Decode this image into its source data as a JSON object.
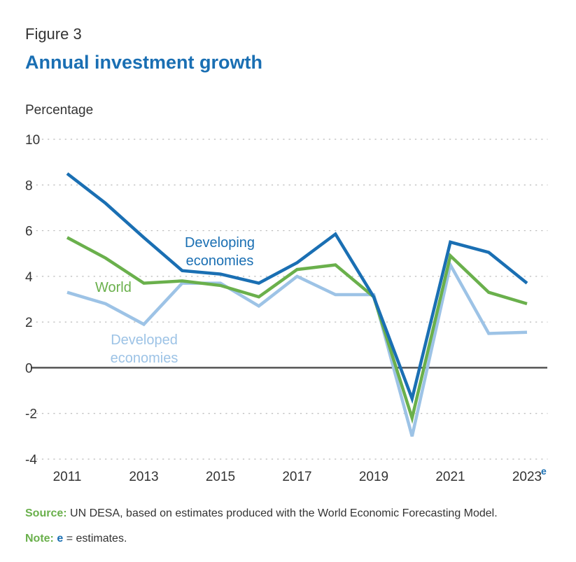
{
  "header": {
    "figure_label": "Figure 3",
    "title": "Annual investment growth"
  },
  "chart_data": {
    "type": "line",
    "ylabel": "Percentage",
    "ylim": [
      -4,
      10
    ],
    "yticks": [
      10,
      8,
      6,
      4,
      2,
      0,
      -2,
      -4
    ],
    "x": [
      2011,
      2012,
      2013,
      2014,
      2015,
      2016,
      2017,
      2018,
      2019,
      2020,
      2021,
      2022,
      2023
    ],
    "xtick_labels": [
      {
        "year": 2011,
        "label": "2011",
        "suffix": ""
      },
      {
        "year": 2013,
        "label": "2013",
        "suffix": ""
      },
      {
        "year": 2015,
        "label": "2015",
        "suffix": ""
      },
      {
        "year": 2017,
        "label": "2017",
        "suffix": ""
      },
      {
        "year": 2019,
        "label": "2019",
        "suffix": ""
      },
      {
        "year": 2021,
        "label": "2021",
        "suffix": ""
      },
      {
        "year": 2023,
        "label": "2023",
        "suffix": "e"
      }
    ],
    "grid": true,
    "series": [
      {
        "name": "Developed economies",
        "label_lines": [
          "Developed",
          "economies"
        ],
        "color": "#9dc3e6",
        "values": [
          3.3,
          2.8,
          1.9,
          3.7,
          3.7,
          2.7,
          4.0,
          3.2,
          3.2,
          -3.0,
          4.5,
          1.5,
          1.55
        ]
      },
      {
        "name": "World",
        "label_lines": [
          "World"
        ],
        "color": "#6ab04c",
        "values": [
          5.7,
          4.8,
          3.7,
          3.8,
          3.6,
          3.1,
          4.3,
          4.5,
          3.1,
          -2.2,
          4.9,
          3.3,
          2.8
        ]
      },
      {
        "name": "Developing economies",
        "label_lines": [
          "Developing",
          "economies"
        ],
        "color": "#1a6fb3",
        "values": [
          8.5,
          7.2,
          5.7,
          4.25,
          4.1,
          3.7,
          4.6,
          5.85,
          3.1,
          -1.35,
          5.5,
          5.05,
          3.7
        ]
      }
    ]
  },
  "footer": {
    "source_label": "Source:",
    "source_text": " UN DESA, based on estimates produced with the World Economic Forecasting Model.",
    "note_label": "Note:",
    "note_e": "e",
    "note_text": " = estimates."
  }
}
